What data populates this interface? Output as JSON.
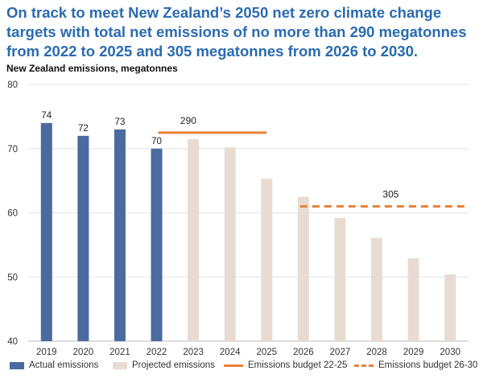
{
  "title": "On track to meet New Zealand’s 2050 net zero climate change targets with total net emissions of no more than 290 megatonnes from 2022 to 2025 and 305 megatonnes from 2026 to 2030.",
  "subtitle": "New Zealand emissions, megatonnes",
  "colors": {
    "actual": "#4a6b9f",
    "projected": "#e8dcd2",
    "budget": "#e8823a",
    "title": "#2a6bb0"
  },
  "chart_data": {
    "type": "bar",
    "categories": [
      "2019",
      "2020",
      "2021",
      "2022",
      "2023",
      "2024",
      "2025",
      "2026",
      "2027",
      "2028",
      "2029",
      "2030"
    ],
    "series": [
      {
        "name": "Actual emissions",
        "values": [
          74,
          72,
          73,
          70,
          null,
          null,
          null,
          null,
          null,
          null,
          null,
          null
        ],
        "data_labels": [
          "74",
          "72",
          "73",
          "70"
        ]
      },
      {
        "name": "Projected emissions",
        "values": [
          null,
          null,
          null,
          null,
          71.5,
          70.2,
          65.3,
          62.5,
          59.2,
          56.1,
          52.9,
          50.4
        ]
      }
    ],
    "budgets": [
      {
        "name": "Emissions budget 22-25",
        "from": "2022",
        "to": "2025",
        "level": 72.5,
        "label": "290",
        "style": "solid"
      },
      {
        "name": "Emissions budget 26-30",
        "from": "2026",
        "to": "2030",
        "level": 61,
        "label": "305",
        "style": "dashed"
      }
    ],
    "ylim": [
      40,
      80
    ],
    "yticks": [
      40,
      50,
      60,
      70,
      80
    ],
    "grid": true,
    "legend": "bottom"
  },
  "legend": [
    {
      "label": "Actual emissions",
      "kind": "box-actual"
    },
    {
      "label": "Projected emissions",
      "kind": "box-projected"
    },
    {
      "label": "Emissions budget 22-25",
      "kind": "line"
    },
    {
      "label": "Emissions budget 26-30",
      "kind": "dash"
    }
  ]
}
